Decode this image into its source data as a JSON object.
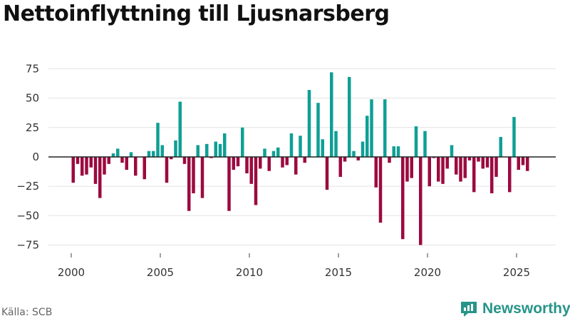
{
  "chart_data": {
    "type": "bar",
    "title": "Nettoinflyttning till Ljusnarsberg",
    "xlabel": "",
    "ylabel": "",
    "ylim": [
      -82,
      88
    ],
    "xlim": [
      1999.5,
      2026.5
    ],
    "yticks": [
      75,
      50,
      25,
      0,
      -25,
      -50,
      -75
    ],
    "ytick_labels": [
      "75",
      "50",
      "25",
      "0",
      "−25",
      "−50",
      "−75"
    ],
    "xticks": [
      2000,
      2005,
      2010,
      2015,
      2020,
      2025
    ],
    "xtick_labels": [
      "2000",
      "2005",
      "2010",
      "2015",
      "2020",
      "2025"
    ],
    "positive_color": "#0f9f95",
    "negative_color": "#9c0a3f",
    "start_year": 2000,
    "periods_per_year": 4,
    "values": [
      -22,
      -6,
      -16,
      -15,
      -9,
      -23,
      -35,
      -15,
      -6,
      3,
      7,
      -5,
      -11,
      4,
      -16,
      0,
      -19,
      5,
      5,
      29,
      10,
      -22,
      -2,
      14,
      47,
      -6,
      -46,
      -31,
      10,
      -35,
      11,
      -1,
      13,
      11,
      20,
      -46,
      -11,
      -8,
      25,
      -14,
      -23,
      -41,
      -10,
      7,
      -12,
      5,
      8,
      -9,
      -7,
      20,
      -15,
      18,
      -5,
      57,
      0,
      46,
      15,
      -28,
      72,
      22,
      -17,
      -4,
      68,
      5,
      -3,
      13,
      35,
      49,
      -26,
      -56,
      49,
      -5,
      9,
      9,
      -70,
      -21,
      -18,
      26,
      -75,
      22,
      -25,
      -1,
      -21,
      -23,
      -10,
      10,
      -15,
      -21,
      -18,
      -3,
      -30,
      -4,
      -10,
      -9,
      -31,
      -17,
      17,
      0,
      -30,
      34,
      -11,
      -7,
      -12
    ]
  },
  "source": "Källa: SCB",
  "brand": "Newsworthy",
  "brand_icon": "newsworthy-logo-icon",
  "colors": {
    "brand": "#279489",
    "axis": "#222222",
    "grid": "#e3e3e3"
  }
}
